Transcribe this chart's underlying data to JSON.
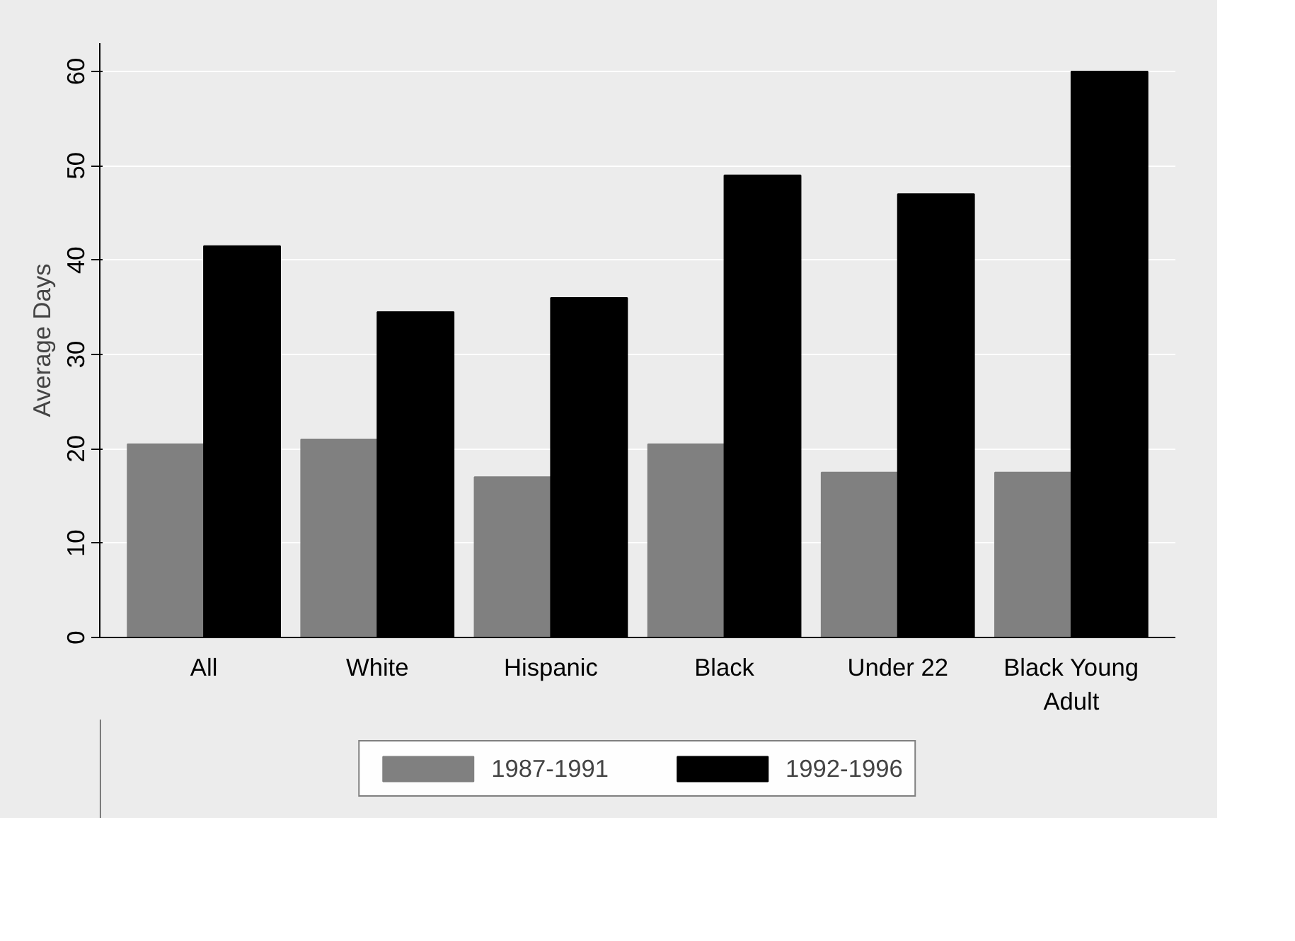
{
  "chart_data": {
    "type": "bar",
    "ylabel": "Average Days",
    "categories": [
      "All",
      "White",
      "Hispanic",
      "Black",
      "Under 22",
      "Black Young Adult"
    ],
    "series": [
      {
        "name": "1987-1991",
        "color": "#808080",
        "values": [
          20.5,
          21,
          17,
          20.5,
          17.5,
          17.5
        ]
      },
      {
        "name": "1992-1996",
        "color": "#000000",
        "values": [
          41.5,
          34.5,
          36,
          49,
          47,
          60
        ]
      }
    ],
    "ylim": [
      0,
      63
    ],
    "yticks": [
      0,
      10,
      20,
      30,
      40,
      50,
      60
    ],
    "grid": "y",
    "legend": "bottom"
  }
}
